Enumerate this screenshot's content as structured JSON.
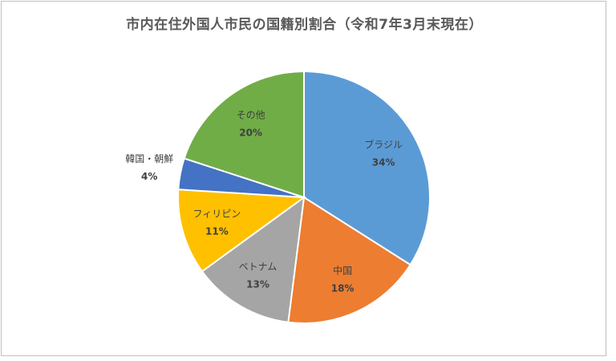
{
  "chart_data": {
    "type": "pie",
    "title": "市内在住外国人市民の国籍別割合（令和7年3月末現在）",
    "categories": [
      "ブラジル",
      "中国",
      "ベトナム",
      "フィリピン",
      "韓国・朝鮮",
      "その他"
    ],
    "values": [
      34,
      18,
      13,
      11,
      4,
      20
    ],
    "value_labels": [
      "34%",
      "18%",
      "13%",
      "11%",
      "4%",
      "20%"
    ],
    "colors": [
      "#5b9bd5",
      "#ed7d31",
      "#a5a5a5",
      "#ffc000",
      "#4472c4",
      "#70ad47"
    ],
    "start_angle_deg": 0,
    "direction": "clockwise",
    "legend": "none"
  }
}
